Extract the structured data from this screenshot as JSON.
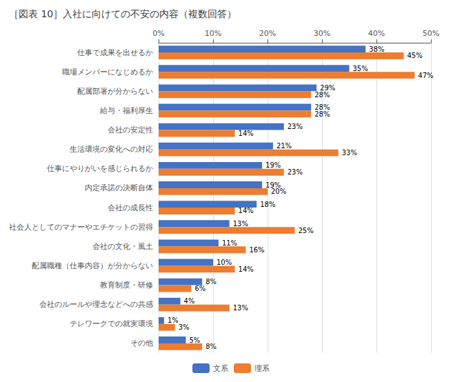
{
  "chart_data": {
    "type": "bar",
    "orientation": "horizontal",
    "title": "［図表 10］入社に向けての不安の内容（複数回答）",
    "categories": [
      "その他",
      "テレワークでの就実環境",
      "会社のルールや理念などへの共感",
      "教育制度・研修",
      "配属職種（仕事内容）が分からない",
      "会社の文化・風土",
      "社会人としてのマナーやエチケットの習得",
      "会社の成長性",
      "内定承諾の決断自体",
      "仕事にやりがいを感じられるか",
      "生活環境の変化への対応",
      "会社の安定性",
      "給与・福利厚生",
      "配属部署が分からない",
      "職場メンバーになじめるか",
      "仕事で成果を出せるか"
    ],
    "series": [
      {
        "name": "文系",
        "color": "#4472C4",
        "values": [
          5,
          1,
          4,
          8,
          10,
          11,
          13,
          18,
          19,
          19,
          21,
          23,
          28,
          29,
          35,
          38
        ],
        "value_labels": [
          "5%",
          "1%",
          "4%",
          "8%",
          "10%",
          "11%",
          "13%",
          "18%",
          "19%",
          "19%",
          "21%",
          "23%",
          "28%",
          "29%",
          "35%",
          "38%"
        ]
      },
      {
        "name": "理系",
        "color": "#ED7D31",
        "values": [
          8,
          3,
          13,
          6,
          14,
          16,
          25,
          14,
          20,
          23,
          33,
          14,
          28,
          28,
          47,
          45
        ],
        "value_labels": [
          "8%",
          "3%",
          "13%",
          "6%",
          "14%",
          "16%",
          "25%",
          "14%",
          "20%",
          "23%",
          "33%",
          "14%",
          "28%",
          "28%",
          "47%",
          "45%"
        ]
      }
    ],
    "xlim": [
      0,
      50
    ],
    "xticks": [
      {
        "value": 0,
        "label": "0%"
      },
      {
        "value": 10,
        "label": "10%"
      },
      {
        "value": 20,
        "label": "20%"
      },
      {
        "value": 30,
        "label": "30%"
      },
      {
        "value": 40,
        "label": "40%"
      },
      {
        "value": 50,
        "label": "50%"
      }
    ],
    "grid": true,
    "legend": "bottom",
    "data_labels": true
  }
}
